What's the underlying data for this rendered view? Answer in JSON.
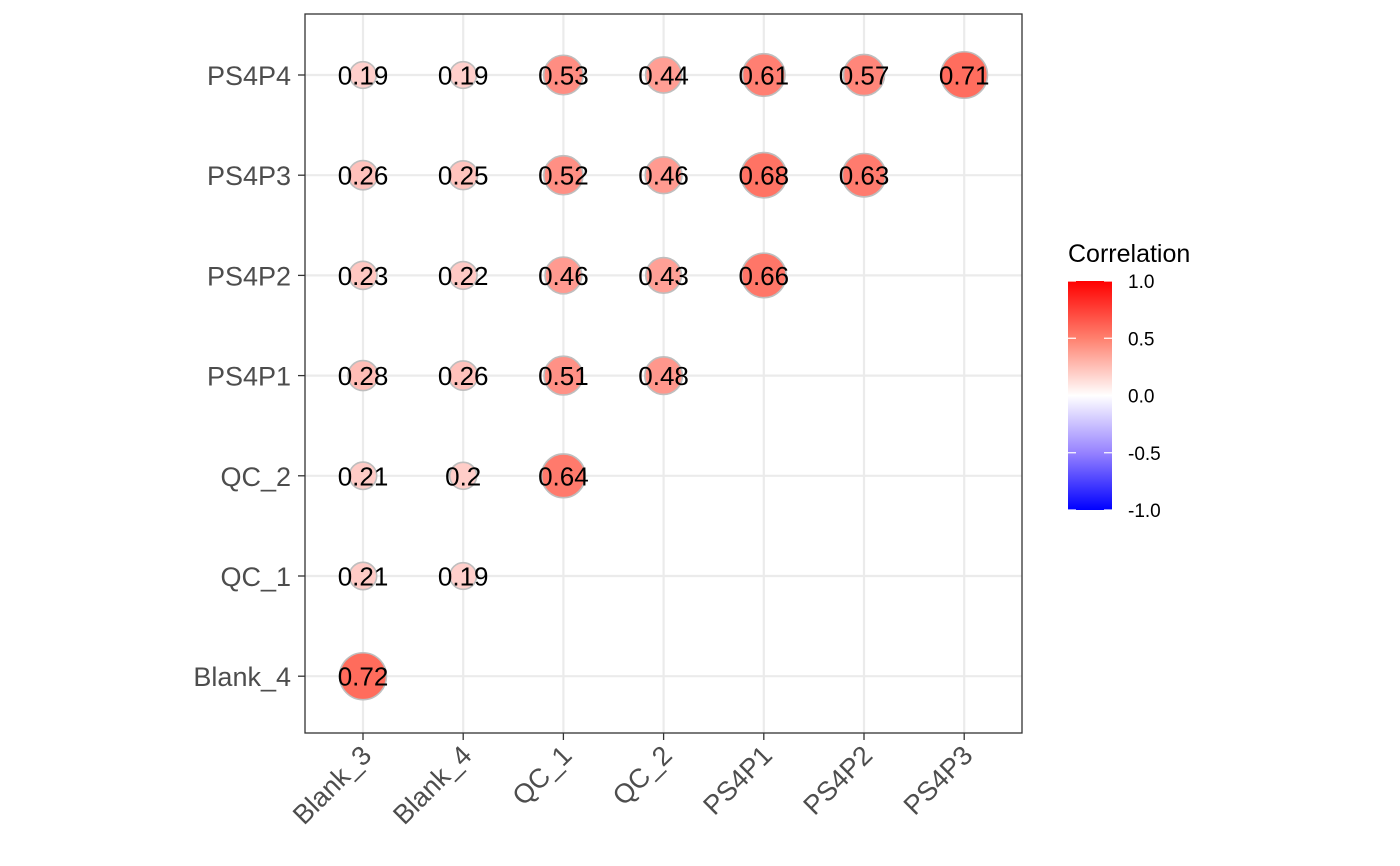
{
  "chart_data": {
    "type": "correlation-bubble-matrix",
    "x_categories": [
      "Blank_3",
      "Blank_4",
      "QC_1",
      "QC_2",
      "PS4P1",
      "PS4P2",
      "PS4P3"
    ],
    "y_categories": [
      "Blank_4",
      "QC_1",
      "QC_2",
      "PS4P1",
      "PS4P2",
      "PS4P3",
      "PS4P4"
    ],
    "cells": [
      {
        "x": "Blank_3",
        "y": "PS4P4",
        "value": 0.19,
        "label": "0.19"
      },
      {
        "x": "Blank_4",
        "y": "PS4P4",
        "value": 0.19,
        "label": "0.19"
      },
      {
        "x": "QC_1",
        "y": "PS4P4",
        "value": 0.53,
        "label": "0.53"
      },
      {
        "x": "QC_2",
        "y": "PS4P4",
        "value": 0.44,
        "label": "0.44"
      },
      {
        "x": "PS4P1",
        "y": "PS4P4",
        "value": 0.61,
        "label": "0.61"
      },
      {
        "x": "PS4P2",
        "y": "PS4P4",
        "value": 0.57,
        "label": "0.57"
      },
      {
        "x": "PS4P3",
        "y": "PS4P4",
        "value": 0.71,
        "label": "0.71"
      },
      {
        "x": "Blank_3",
        "y": "PS4P3",
        "value": 0.26,
        "label": "0.26"
      },
      {
        "x": "Blank_4",
        "y": "PS4P3",
        "value": 0.25,
        "label": "0.25"
      },
      {
        "x": "QC_1",
        "y": "PS4P3",
        "value": 0.52,
        "label": "0.52"
      },
      {
        "x": "QC_2",
        "y": "PS4P3",
        "value": 0.46,
        "label": "0.46"
      },
      {
        "x": "PS4P1",
        "y": "PS4P3",
        "value": 0.68,
        "label": "0.68"
      },
      {
        "x": "PS4P2",
        "y": "PS4P3",
        "value": 0.63,
        "label": "0.63"
      },
      {
        "x": "Blank_3",
        "y": "PS4P2",
        "value": 0.23,
        "label": "0.23"
      },
      {
        "x": "Blank_4",
        "y": "PS4P2",
        "value": 0.22,
        "label": "0.22"
      },
      {
        "x": "QC_1",
        "y": "PS4P2",
        "value": 0.46,
        "label": "0.46"
      },
      {
        "x": "QC_2",
        "y": "PS4P2",
        "value": 0.43,
        "label": "0.43"
      },
      {
        "x": "PS4P1",
        "y": "PS4P2",
        "value": 0.66,
        "label": "0.66"
      },
      {
        "x": "Blank_3",
        "y": "PS4P1",
        "value": 0.28,
        "label": "0.28"
      },
      {
        "x": "Blank_4",
        "y": "PS4P1",
        "value": 0.26,
        "label": "0.26"
      },
      {
        "x": "QC_1",
        "y": "PS4P1",
        "value": 0.51,
        "label": "0.51"
      },
      {
        "x": "QC_2",
        "y": "PS4P1",
        "value": 0.48,
        "label": "0.48"
      },
      {
        "x": "Blank_3",
        "y": "QC_2",
        "value": 0.21,
        "label": "0.21"
      },
      {
        "x": "Blank_4",
        "y": "QC_2",
        "value": 0.2,
        "label": "0.2"
      },
      {
        "x": "QC_1",
        "y": "QC_2",
        "value": 0.64,
        "label": "0.64"
      },
      {
        "x": "Blank_3",
        "y": "QC_1",
        "value": 0.21,
        "label": "0.21"
      },
      {
        "x": "Blank_4",
        "y": "QC_1",
        "value": 0.19,
        "label": "0.19"
      },
      {
        "x": "Blank_3",
        "y": "Blank_4",
        "value": 0.72,
        "label": "0.72"
      }
    ],
    "legend": {
      "title": "Correlation",
      "placement": "right",
      "range": [
        -1.0,
        1.0
      ],
      "breaks": [
        1.0,
        0.5,
        0.0,
        -0.5,
        -1.0
      ],
      "break_labels": [
        "1.0",
        "0.5",
        "0.0",
        "-0.5",
        "-1.0"
      ],
      "low_color": "#0000ff",
      "mid_color": "#ffffff",
      "high_color": "#ff0000"
    },
    "grid": true,
    "panel_border": true,
    "circle_outline_color": "#bebebe",
    "grid_color": "#ebebeb"
  }
}
